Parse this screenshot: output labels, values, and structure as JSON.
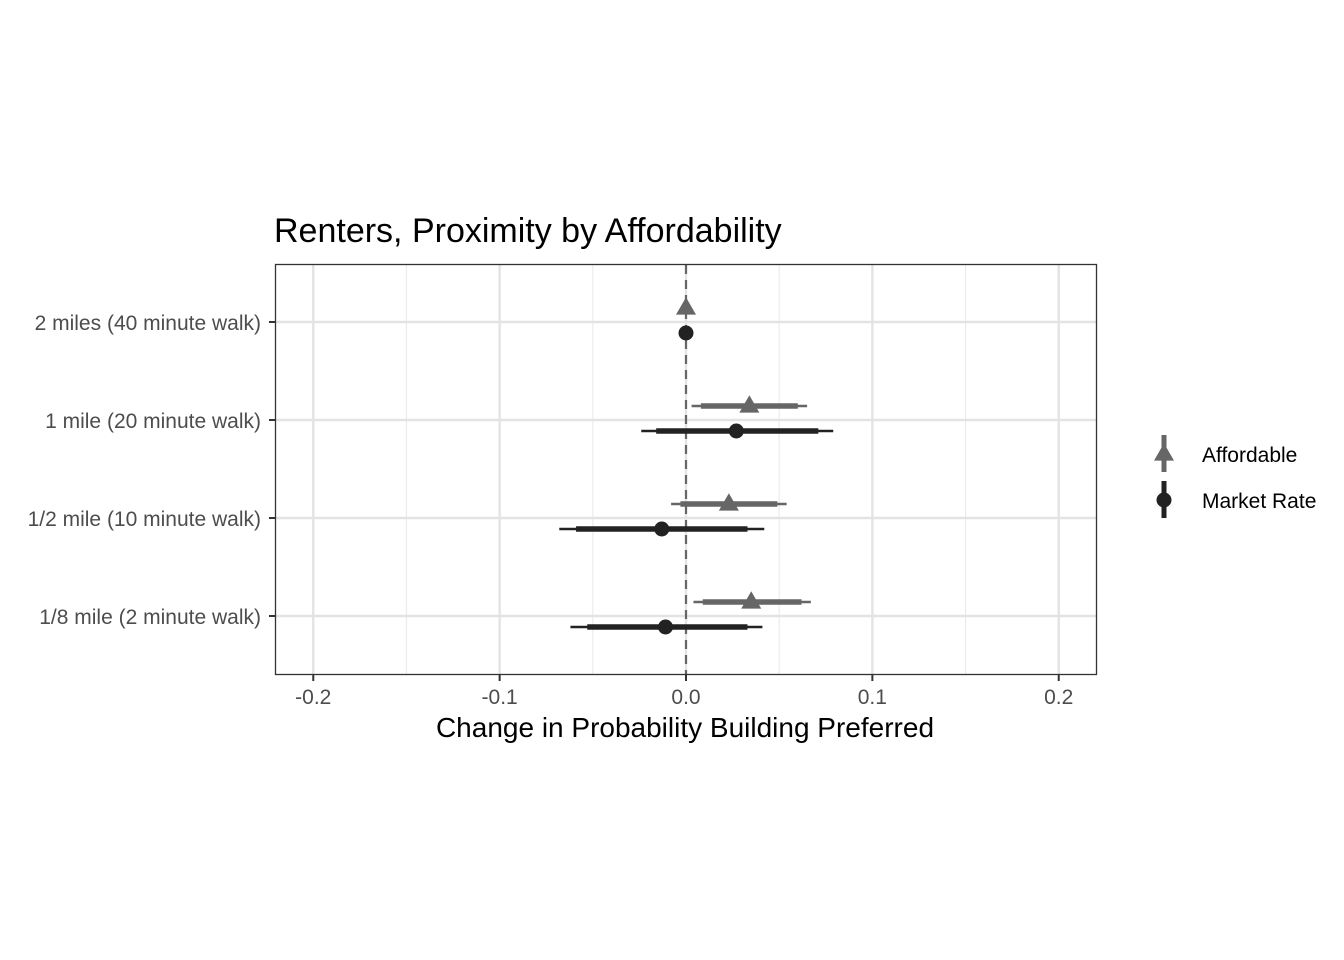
{
  "chart_data": {
    "type": "coefficient-plot",
    "title": "Renters, Proximity by Affordability",
    "xlabel": "Change in Probability Building Preferred",
    "ylabel": "",
    "xlim": [
      -0.22,
      0.22
    ],
    "x_ticks": [
      -0.2,
      -0.1,
      0.0,
      0.1,
      0.2
    ],
    "x_tick_labels": [
      "-0.2",
      "-0.1",
      "0.0",
      "0.1",
      "0.2"
    ],
    "x_minor_ticks": [
      -0.15,
      -0.05,
      0.05,
      0.15
    ],
    "categories": [
      "2 miles (40 minute walk)",
      "1 mile (20 minute walk)",
      "1/2 mile (10 minute walk)",
      "1/8 mile (2 minute walk)"
    ],
    "reference_line": {
      "x": 0,
      "style": "dashed",
      "color": "#666666"
    },
    "grid": true,
    "legend_position": "right",
    "series": [
      {
        "name": "Affordable",
        "marker": "triangle",
        "color": "#666666",
        "estimates": [
          0.0,
          0.034,
          0.023,
          0.035
        ],
        "ci_inner": [
          [
            0.0,
            0.0
          ],
          [
            0.008,
            0.06
          ],
          [
            -0.003,
            0.049
          ],
          [
            0.009,
            0.062
          ]
        ],
        "ci_outer": [
          [
            0.0,
            0.0
          ],
          [
            0.003,
            0.065
          ],
          [
            -0.008,
            0.054
          ],
          [
            0.004,
            0.067
          ]
        ]
      },
      {
        "name": "Market Rate",
        "marker": "circle",
        "color": "#222222",
        "estimates": [
          0.0,
          0.027,
          -0.013,
          -0.011
        ],
        "ci_inner": [
          [
            0.0,
            0.0
          ],
          [
            -0.016,
            0.071
          ],
          [
            -0.059,
            0.033
          ],
          [
            -0.053,
            0.033
          ]
        ],
        "ci_outer": [
          [
            0.0,
            0.0
          ],
          [
            -0.024,
            0.079
          ],
          [
            -0.068,
            0.042
          ],
          [
            -0.062,
            0.041
          ]
        ]
      }
    ]
  }
}
